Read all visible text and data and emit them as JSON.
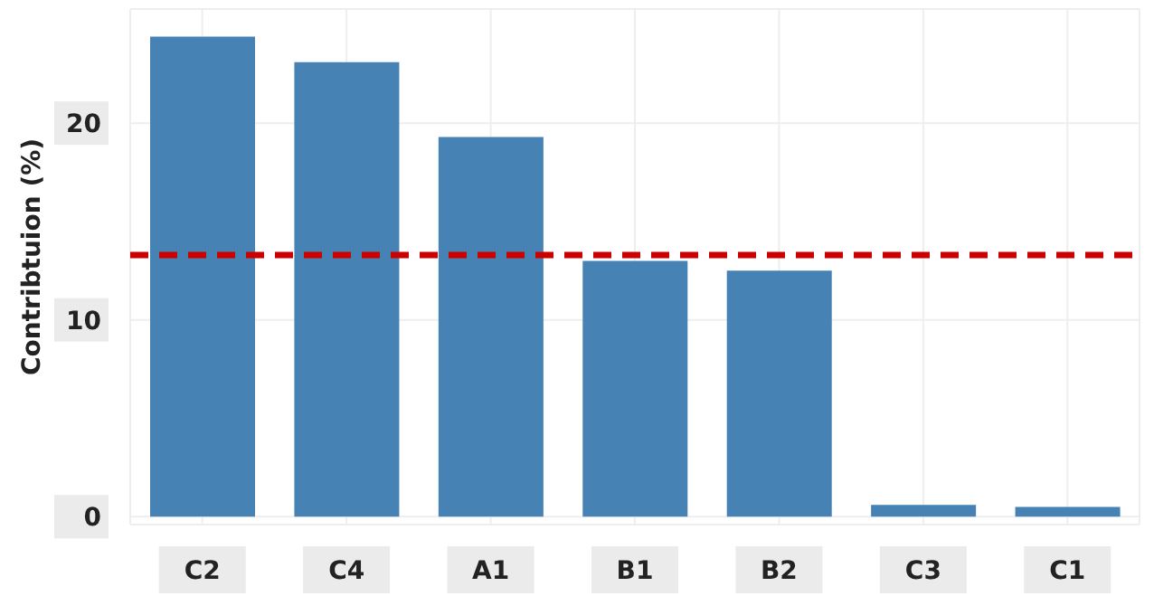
{
  "chart_data": {
    "type": "bar",
    "ylabel": "Contribtuion (%)",
    "categories": [
      "C2",
      "C4",
      "A1",
      "B1",
      "B2",
      "C3",
      "C1"
    ],
    "values": [
      24.4,
      23.1,
      19.3,
      13.0,
      12.5,
      0.6,
      0.5
    ],
    "color": "#4682b4",
    "ylim": [
      -0.4,
      25.8
    ],
    "yticks": [
      0,
      10,
      20
    ],
    "grid": true,
    "ref_lines": [
      {
        "axis": "y",
        "value": 13.3,
        "color": "#cc0000",
        "line_style": "dashed"
      }
    ]
  }
}
